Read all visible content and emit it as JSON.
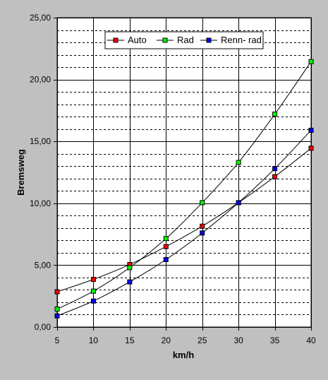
{
  "chart_data": {
    "type": "line",
    "title": "",
    "xlabel": "km/h",
    "ylabel": "Bremsweg",
    "x": [
      5,
      10,
      15,
      20,
      25,
      30,
      35,
      40
    ],
    "x_ticks": [
      "5",
      "10",
      "15",
      "20",
      "25",
      "30",
      "35",
      "40"
    ],
    "xlim": [
      5,
      40
    ],
    "ylim": [
      0,
      25
    ],
    "y_ticks": [
      "0,00",
      "5,00",
      "10,00",
      "15,00",
      "20,00",
      "25,00"
    ],
    "y_tick_values": [
      0,
      5,
      10,
      15,
      20,
      25
    ],
    "minor_gridline_step": 1,
    "grid": "major solid, minor dashed",
    "legend_position": "top-center",
    "background_color": "#c0c0c0",
    "plot_background_color": "#ffffff",
    "series": [
      {
        "name": "Auto",
        "color": "#ff0000",
        "values": [
          2.85,
          3.85,
          5.05,
          6.5,
          8.15,
          10.05,
          12.15,
          14.45
        ]
      },
      {
        "name": "Rad",
        "color": "#00ff00",
        "values": [
          1.45,
          2.9,
          4.8,
          7.15,
          10.05,
          13.3,
          17.2,
          21.45
        ]
      },
      {
        "name": "Renn- rad",
        "color": "#0000ff",
        "values": [
          0.9,
          2.1,
          3.65,
          5.45,
          7.6,
          10.05,
          12.8,
          15.9
        ]
      }
    ]
  }
}
